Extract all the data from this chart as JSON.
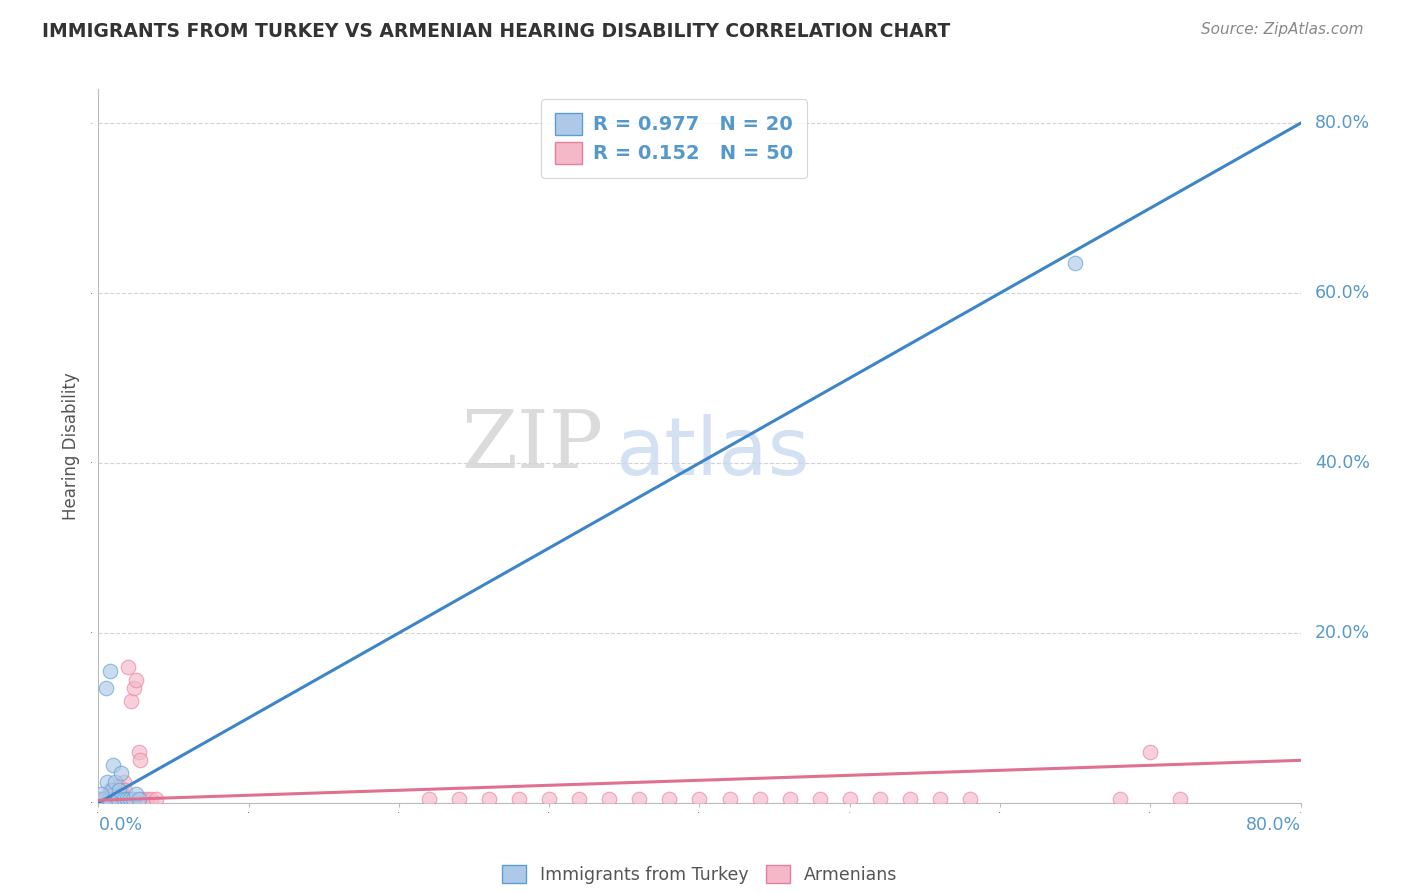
{
  "title": "IMMIGRANTS FROM TURKEY VS ARMENIAN HEARING DISABILITY CORRELATION CHART",
  "source_text": "Source: ZipAtlas.com",
  "ylabel": "Hearing Disability",
  "watermark_zip": "ZIP",
  "watermark_atlas": "atlas",
  "legend1_label": "R = 0.977   N = 20",
  "legend2_label": "R = 0.152   N = 50",
  "legend1_bottom": "Immigrants from Turkey",
  "legend2_bottom": "Armenians",
  "blue_fill": "#aec9e8",
  "blue_edge": "#5a9fd4",
  "pink_fill": "#f4b8c8",
  "pink_edge": "#e87fa0",
  "trend_blue": "#3d85c8",
  "trend_pink": "#e07090",
  "axis_label_color": "#5599cc",
  "title_color": "#333333",
  "source_color": "#888888",
  "background_color": "#ffffff",
  "grid_color": "#c8c8c8",
  "xmin": 0.0,
  "xmax": 0.8,
  "ymin": 0.0,
  "ymax": 0.84,
  "blue_scatter_x": [
    0.003,
    0.004,
    0.005,
    0.006,
    0.007,
    0.008,
    0.009,
    0.01,
    0.011,
    0.013,
    0.014,
    0.015,
    0.017,
    0.019,
    0.021,
    0.023,
    0.025,
    0.027,
    0.65,
    0.002
  ],
  "blue_scatter_y": [
    0.005,
    0.005,
    0.135,
    0.025,
    0.005,
    0.155,
    0.015,
    0.045,
    0.025,
    0.005,
    0.015,
    0.035,
    0.005,
    0.005,
    0.005,
    0.005,
    0.01,
    0.005,
    0.635,
    0.01
  ],
  "pink_scatter_x": [
    0.001,
    0.002,
    0.003,
    0.004,
    0.005,
    0.006,
    0.007,
    0.008,
    0.009,
    0.01,
    0.011,
    0.012,
    0.013,
    0.014,
    0.015,
    0.016,
    0.017,
    0.018,
    0.02,
    0.022,
    0.024,
    0.025,
    0.027,
    0.028,
    0.03,
    0.032,
    0.035,
    0.038,
    0.22,
    0.24,
    0.26,
    0.28,
    0.3,
    0.32,
    0.34,
    0.36,
    0.38,
    0.4,
    0.42,
    0.44,
    0.46,
    0.48,
    0.5,
    0.52,
    0.54,
    0.56,
    0.58,
    0.68,
    0.7,
    0.72
  ],
  "pink_scatter_y": [
    0.005,
    0.005,
    0.005,
    0.005,
    0.005,
    0.005,
    0.005,
    0.015,
    0.01,
    0.01,
    0.005,
    0.015,
    0.005,
    0.02,
    0.015,
    0.01,
    0.025,
    0.015,
    0.16,
    0.12,
    0.135,
    0.145,
    0.06,
    0.05,
    0.005,
    0.005,
    0.005,
    0.005,
    0.005,
    0.005,
    0.005,
    0.005,
    0.005,
    0.005,
    0.005,
    0.005,
    0.005,
    0.005,
    0.005,
    0.005,
    0.005,
    0.005,
    0.005,
    0.005,
    0.005,
    0.005,
    0.005,
    0.005,
    0.06,
    0.005
  ],
  "blue_trend_x": [
    0.0,
    0.8
  ],
  "blue_trend_y": [
    0.0,
    0.8
  ],
  "pink_trend_x": [
    0.0,
    0.8
  ],
  "pink_trend_y": [
    0.003,
    0.05
  ],
  "ytick_vals": [
    0.0,
    0.2,
    0.4,
    0.6,
    0.8
  ],
  "ytick_labels": [
    "",
    "20.0%",
    "40.0%",
    "60.0%",
    "80.0%"
  ]
}
